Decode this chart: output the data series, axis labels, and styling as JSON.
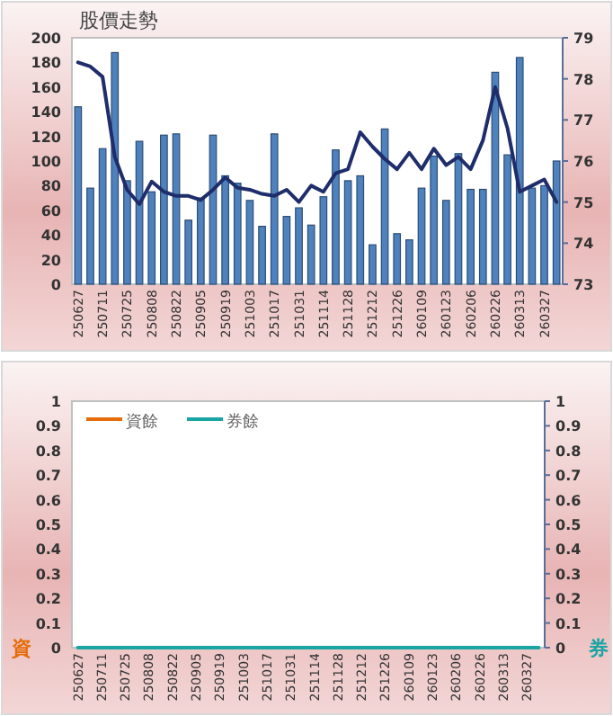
{
  "chart_data": [
    {
      "type": "bar",
      "title": "股價走勢",
      "categories": [
        "250627",
        null,
        "250711",
        null,
        "250725",
        null,
        "250808",
        null,
        "250822",
        null,
        "250905",
        null,
        "250919",
        null,
        "251003",
        null,
        "251017",
        null,
        "251031",
        null,
        "251114",
        null,
        "251128",
        null,
        "251212",
        null,
        "251226",
        null,
        "260109",
        null,
        "260123",
        null,
        "260206",
        null,
        "260226",
        null,
        "260313",
        null,
        "260327",
        null
      ],
      "series": [
        {
          "color": "#4f81bd",
          "values": [
            144,
            78,
            110,
            188,
            84,
            116,
            75,
            121,
            122,
            52,
            70,
            121,
            88,
            82,
            68,
            47,
            122,
            55,
            62,
            48,
            71,
            109,
            84,
            88,
            32,
            126,
            41,
            36,
            78,
            104,
            68,
            106,
            77,
            77,
            172,
            105,
            184,
            78,
            80,
            100
          ]
        },
        {
          "type": "line",
          "axis": "y2",
          "color": "#1f2d6b",
          "values": [
            78.4,
            78.3,
            78.05,
            76.1,
            75.3,
            74.95,
            75.5,
            75.25,
            75.15,
            75.15,
            75.05,
            75.3,
            75.6,
            75.35,
            75.3,
            75.2,
            75.15,
            75.3,
            75.0,
            75.4,
            75.25,
            75.7,
            75.8,
            76.7,
            76.35,
            76.05,
            75.8,
            76.2,
            75.8,
            76.3,
            75.9,
            76.1,
            75.8,
            76.5,
            77.8,
            76.8,
            75.25,
            75.4,
            75.55,
            75.0
          ]
        }
      ],
      "ylim": [
        0,
        200
      ],
      "yticks": [
        0,
        20,
        40,
        60,
        80,
        100,
        120,
        140,
        160,
        180,
        200
      ],
      "y2lim": [
        73,
        79
      ],
      "y2ticks": [
        73,
        74,
        75,
        76,
        77,
        78,
        79
      ]
    },
    {
      "type": "line",
      "ylabel": "資",
      "y2label": "券",
      "legend": "top left",
      "categories": [
        "250627",
        null,
        "250711",
        null,
        "250725",
        null,
        "250808",
        null,
        "250822",
        null,
        "250905",
        null,
        "250919",
        null,
        "251003",
        null,
        "251017",
        null,
        "251031",
        null,
        "251114",
        null,
        "251128",
        null,
        "251212",
        null,
        "251226",
        null,
        "260109",
        null,
        "260123",
        null,
        "260206",
        null,
        "260226",
        null,
        "260313",
        null,
        "260327",
        null
      ],
      "series": [
        {
          "name": "資餘",
          "color": "#e46c0a",
          "values": [
            null,
            null,
            null,
            null,
            null,
            null,
            null,
            null,
            null,
            null,
            null,
            null,
            null,
            null,
            null,
            null,
            null,
            null,
            null,
            null,
            null,
            null,
            null,
            null,
            null,
            null,
            null,
            null,
            null,
            null,
            null,
            null,
            null,
            null,
            null,
            null,
            null,
            null,
            null,
            null
          ]
        },
        {
          "name": "券餘",
          "color": "#1aa5a5",
          "axis": "y2",
          "values": [
            0,
            0,
            0,
            0,
            0,
            0,
            0,
            0,
            0,
            0,
            0,
            0,
            0,
            0,
            0,
            0,
            0,
            0,
            0,
            0,
            0,
            0,
            0,
            0,
            0,
            0,
            0,
            0,
            0,
            0,
            0,
            0,
            0,
            0,
            0,
            0,
            0,
            0,
            0,
            0
          ]
        }
      ],
      "ylim": [
        0,
        1
      ],
      "yticks": [
        0,
        0.1,
        0.2,
        0.3,
        0.4,
        0.5,
        0.6,
        0.7,
        0.8,
        0.9,
        1
      ],
      "y2lim": [
        0,
        1
      ],
      "y2ticks": [
        0,
        0.1,
        0.2,
        0.3,
        0.4,
        0.5,
        0.6,
        0.7,
        0.8,
        0.9,
        1
      ]
    }
  ]
}
